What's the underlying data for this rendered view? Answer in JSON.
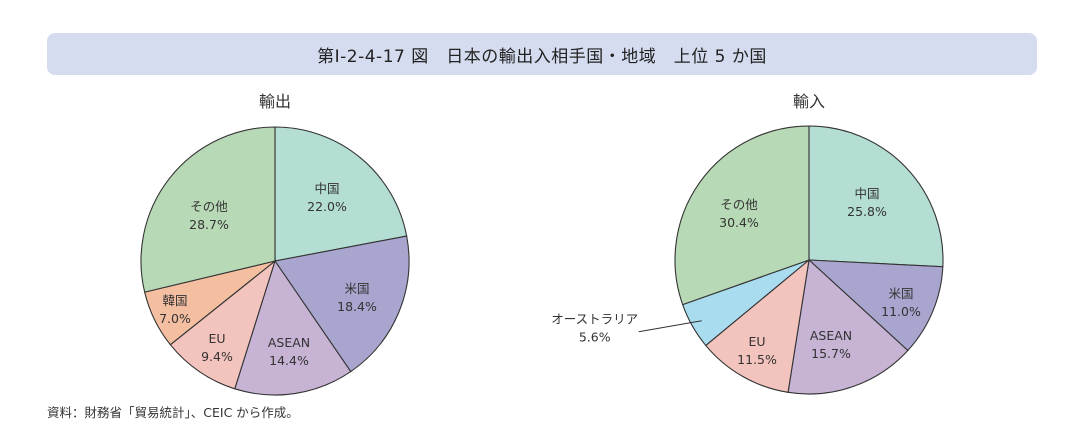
{
  "header": {
    "title": "第Ⅰ-2-4-17 図　日本の輸出入相手国・地域　上位 5 か国"
  },
  "chart_data": [
    {
      "type": "pie",
      "title": "輸出",
      "slices": [
        {
          "label": "中国",
          "value": 22.0,
          "value_label": "22.0%",
          "color": "#b4ddd4"
        },
        {
          "label": "米国",
          "value": 18.4,
          "value_label": "18.4%",
          "color": "#a8a6cf"
        },
        {
          "label": "ASEAN",
          "value": 14.4,
          "value_label": "14.4%",
          "color": "#c7b3d4"
        },
        {
          "label": "EU",
          "value": 9.4,
          "value_label": "9.4%",
          "color": "#f3c3bd"
        },
        {
          "label": "韓国",
          "value": 7.0,
          "value_label": "7.0%",
          "color": "#f4bfa1"
        },
        {
          "label": "その他",
          "value": 28.7,
          "value_label": "28.7%",
          "color": "#b8d9b6"
        }
      ]
    },
    {
      "type": "pie",
      "title": "輸入",
      "slices": [
        {
          "label": "中国",
          "value": 25.8,
          "value_label": "25.8%",
          "color": "#b4ddd4"
        },
        {
          "label": "米国",
          "value": 11.0,
          "value_label": "11.0%",
          "color": "#a8a6cf"
        },
        {
          "label": "ASEAN",
          "value": 15.7,
          "value_label": "15.7%",
          "color": "#c7b3d4"
        },
        {
          "label": "EU",
          "value": 11.5,
          "value_label": "11.5%",
          "color": "#f3c3bd"
        },
        {
          "label": "オーストラリア",
          "value": 5.6,
          "value_label": "5.6%",
          "color": "#a9dcef"
        },
        {
          "label": "その他",
          "value": 30.4,
          "value_label": "30.4%",
          "color": "#b8d9b6"
        }
      ]
    }
  ],
  "footer": {
    "source": "資料：財務省「貿易統計」、CEIC から作成。"
  }
}
